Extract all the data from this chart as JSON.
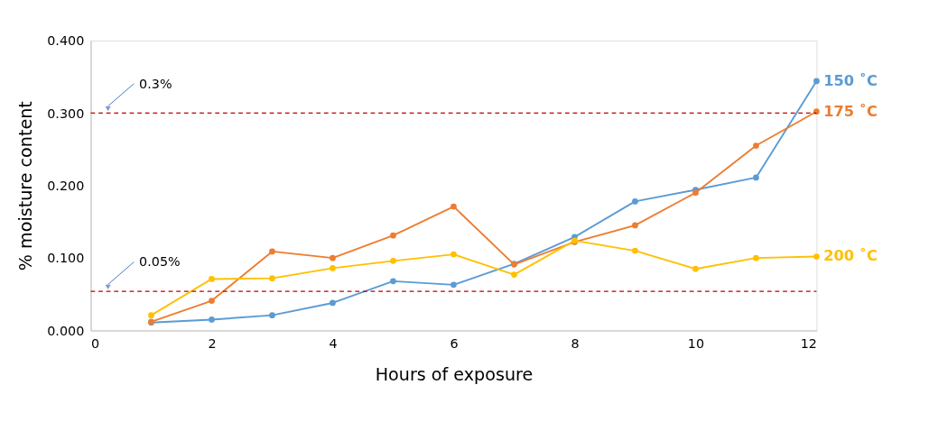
{
  "chart_data": {
    "type": "line",
    "xlabel": "Hours of exposure",
    "ylabel": "% moisture content",
    "x": [
      1,
      2,
      3,
      4,
      5,
      6,
      7,
      8,
      9,
      10,
      11,
      12
    ],
    "series": [
      {
        "name": "150 ˚C",
        "color": "#5b9bd5",
        "values": [
          0.011,
          0.015,
          0.021,
          0.038,
          0.068,
          0.063,
          0.092,
          0.129,
          0.178,
          0.194,
          0.211,
          0.344
        ]
      },
      {
        "name": "175 ˚C",
        "color": "#ed7d31",
        "values": [
          0.012,
          0.041,
          0.109,
          0.1,
          0.131,
          0.171,
          0.091,
          0.122,
          0.145,
          0.19,
          0.255,
          0.302
        ]
      },
      {
        "name": "200 ˚C",
        "color": "#ffc000",
        "values": [
          0.021,
          0.071,
          0.072,
          0.086,
          0.096,
          0.105,
          0.077,
          0.124,
          0.11,
          0.085,
          0.1,
          0.102
        ]
      }
    ],
    "xlim": [
      0,
      12
    ],
    "xticks": [
      0,
      2,
      4,
      6,
      8,
      10,
      12
    ],
    "ylim": [
      0,
      0.4
    ],
    "yticks": [
      {
        "value": 0,
        "label": "0.000"
      },
      {
        "value": 0.1,
        "label": "0.100"
      },
      {
        "value": 0.2,
        "label": "0.200"
      },
      {
        "value": 0.3,
        "label": "0.300"
      },
      {
        "value": 0.4,
        "label": "0.400"
      }
    ],
    "ref_lines": [
      {
        "axis": "y",
        "value": 0.3,
        "label": "0.3%",
        "color": "#c00000",
        "line_style": "dashed"
      },
      {
        "axis": "y",
        "value": 0.054,
        "label": "0.05%",
        "color": "#c00000",
        "line_style": "dashed"
      }
    ],
    "marker": "circle",
    "line_style": "solid",
    "grid": false,
    "legend": false
  }
}
